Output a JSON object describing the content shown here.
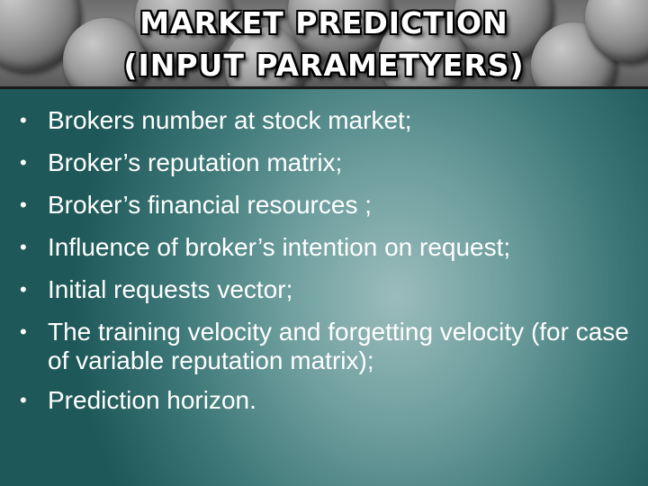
{
  "slide": {
    "title_line1": "MARKET PREDICTION",
    "title_line2": "(INPUT PARAMETYERS)",
    "bullet_glyph": "•",
    "bullets": [
      "Brokers number at stock market;",
      "Broker’s reputation matrix;",
      "Broker’s financial resources ;",
      "Influence of broker’s intention on request;",
      "Initial requests vector;",
      "The training velocity and forgetting velocity (for case of variable reputation matrix);",
      "Prediction horizon."
    ]
  },
  "colors": {
    "background_teal": "#2f6e6e",
    "text": "#ffffff",
    "title_outline": "#000000"
  }
}
